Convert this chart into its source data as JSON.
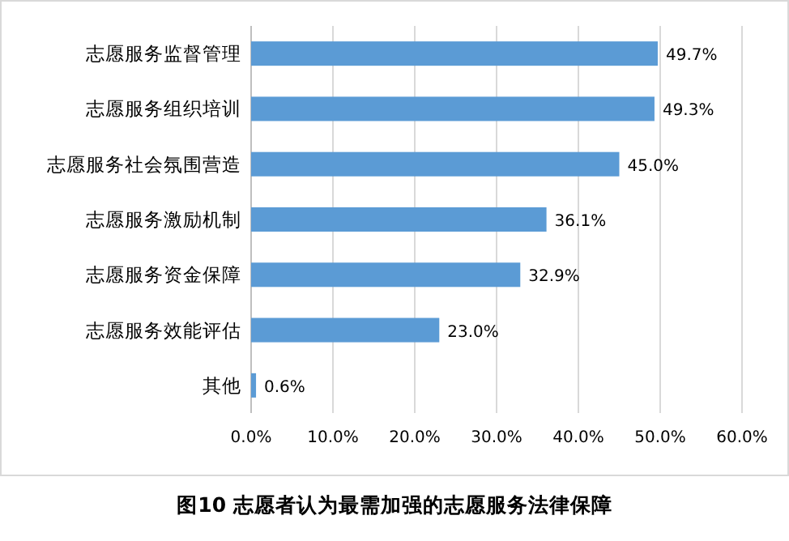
{
  "chart_data": {
    "type": "bar",
    "orientation": "horizontal",
    "title": "图10 志愿者认为最需加强的志愿服务法律保障",
    "categories": [
      "志愿服务监督管理",
      "志愿服务组织培训",
      "志愿服务社会氛围营造",
      "志愿服务激励机制",
      "志愿服务资金保障",
      "志愿服务效能评估",
      "其他"
    ],
    "values": [
      49.7,
      49.3,
      45.0,
      36.1,
      32.9,
      23.0,
      0.6
    ],
    "value_labels": [
      "49.7%",
      "49.3%",
      "45.0%",
      "36.1%",
      "32.9%",
      "23.0%",
      "0.6%"
    ],
    "color": "#5b9bd5",
    "xlim": [
      0,
      60
    ],
    "xticks": [
      {
        "value": 0,
        "label": "0.0%"
      },
      {
        "value": 10,
        "label": "10.0%"
      },
      {
        "value": 20,
        "label": "20.0%"
      },
      {
        "value": 30,
        "label": "30.0%"
      },
      {
        "value": 40,
        "label": "40.0%"
      },
      {
        "value": 50,
        "label": "50.0%"
      },
      {
        "value": 60,
        "label": "60.0%"
      }
    ],
    "grid": "x"
  }
}
